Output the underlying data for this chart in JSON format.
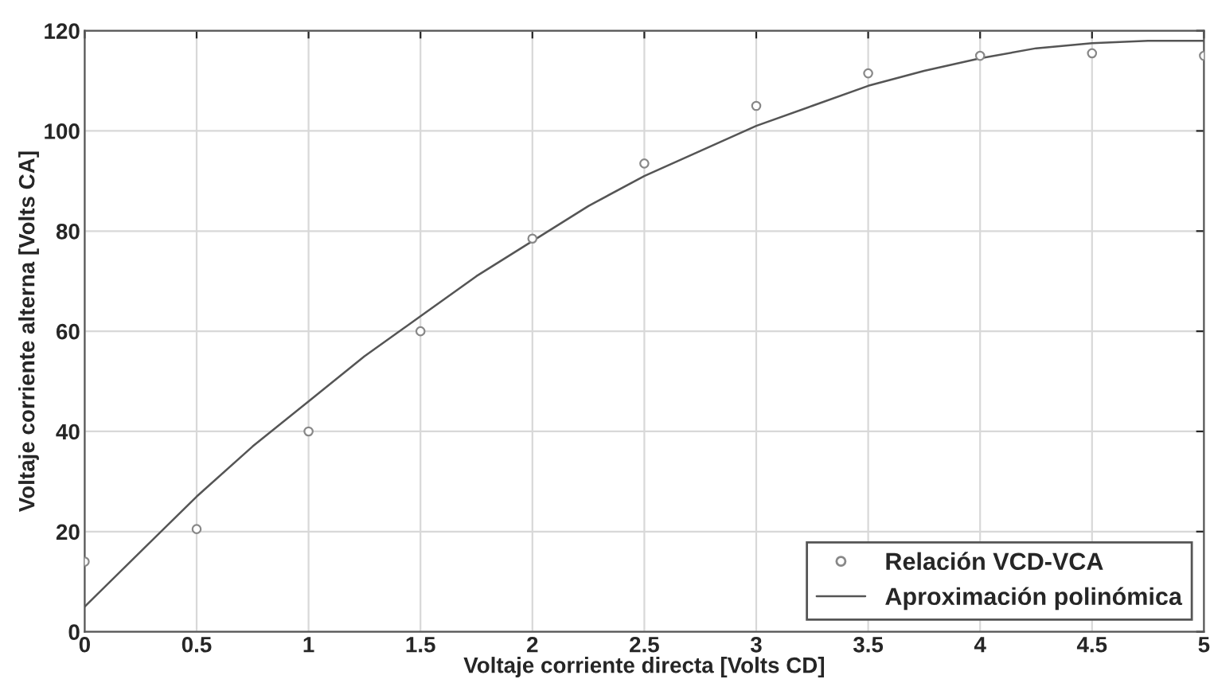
{
  "chart_data": {
    "type": "scatter",
    "xlabel": "Voltaje corriente directa [Volts CD]",
    "ylabel": "Voltaje corriente alterna [Volts CA]",
    "xlim": [
      0,
      5
    ],
    "xticks": [
      0,
      0.5,
      1,
      1.5,
      2,
      2.5,
      3,
      3.5,
      4,
      4.5,
      5
    ],
    "ylim": [
      0,
      120
    ],
    "yticks": [
      0,
      20,
      40,
      60,
      80,
      100,
      120
    ],
    "grid": true,
    "legend": "bottom right",
    "series": [
      {
        "name": "Relación VCD-VCA",
        "marker": "circle",
        "color": "#888888",
        "x": [
          0,
          0.5,
          1,
          1.5,
          2,
          2.5,
          3,
          3.5,
          4,
          4.5,
          5
        ],
        "values": [
          14,
          20.5,
          40,
          60,
          78.5,
          93.5,
          105,
          111.5,
          115,
          115.5,
          115
        ]
      },
      {
        "name": "Aproximación polinómica",
        "type": "line",
        "color": "#555555",
        "line_style": "solid",
        "x": [
          0,
          0.25,
          0.5,
          0.75,
          1,
          1.25,
          1.5,
          1.75,
          2,
          2.25,
          2.5,
          2.75,
          3,
          3.25,
          3.5,
          3.75,
          4,
          4.25,
          4.5,
          4.75,
          5
        ],
        "values": [
          5,
          16,
          27,
          37,
          46,
          55,
          63,
          71,
          78,
          85,
          91,
          96,
          101,
          105,
          109,
          112,
          114.5,
          116.5,
          117.5,
          118,
          118
        ]
      }
    ]
  }
}
